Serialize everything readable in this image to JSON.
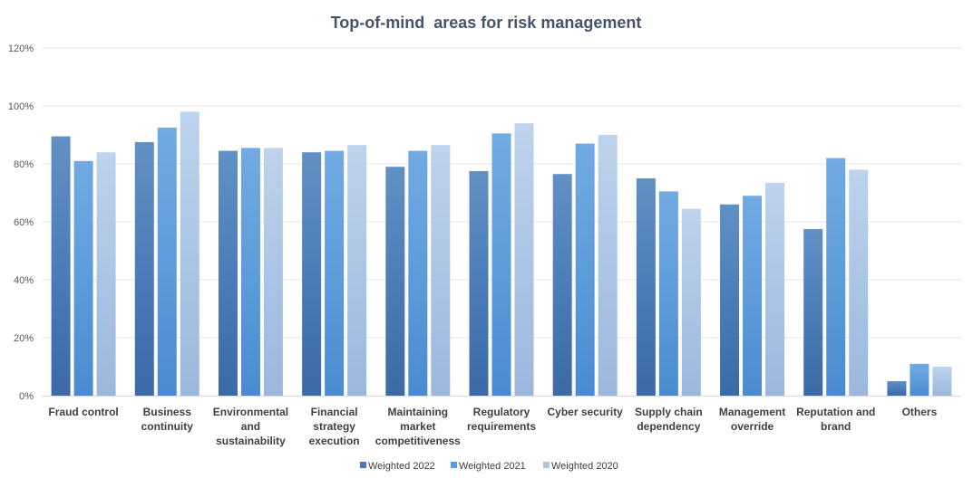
{
  "chart_data": {
    "type": "bar",
    "title": "Top-of-mind  areas for risk management",
    "xlabel": "",
    "ylabel": "",
    "ylim": [
      0,
      120
    ],
    "ytick_values": [
      0,
      20,
      40,
      60,
      80,
      100,
      120
    ],
    "ytick_labels": [
      "0%",
      "20%",
      "40%",
      "60%",
      "80%",
      "100%",
      "120%"
    ],
    "grid": true,
    "legend_position": "bottom",
    "categories": [
      [
        "Fraud control"
      ],
      [
        "Business",
        "continuity"
      ],
      [
        "Environmental",
        "and",
        "sustainability"
      ],
      [
        "Financial",
        "strategy",
        "execution"
      ],
      [
        "Maintaining",
        "market",
        "competitiveness"
      ],
      [
        "Regulatory",
        "requirements"
      ],
      [
        "Cyber security"
      ],
      [
        "Supply chain",
        "dependency"
      ],
      [
        "Management",
        "override"
      ],
      [
        "Reputation and",
        "brand"
      ],
      [
        "Others"
      ]
    ],
    "series": [
      {
        "name": "Weighted 2022",
        "color": "#4a7bb7",
        "colorDark": "#3b6aa6",
        "colorLight": "#6190c4",
        "values": [
          89.5,
          87.5,
          84.5,
          84,
          79,
          77.5,
          76.5,
          75,
          66,
          57.5,
          5
        ]
      },
      {
        "name": "Weighted 2021",
        "color": "#5b9bd9",
        "colorDark": "#4a8ad0",
        "colorLight": "#72aae2",
        "values": [
          81,
          92.5,
          85.5,
          84.5,
          84.5,
          90.5,
          87,
          70.5,
          69,
          82,
          11
        ]
      },
      {
        "name": "Weighted 2020",
        "color": "#a9c4e4",
        "colorDark": "#9bb8dc",
        "colorLight": "#bed3ec",
        "values": [
          84,
          98,
          85.5,
          86.5,
          86.5,
          94,
          90,
          64.5,
          73.5,
          78,
          10
        ]
      }
    ]
  }
}
